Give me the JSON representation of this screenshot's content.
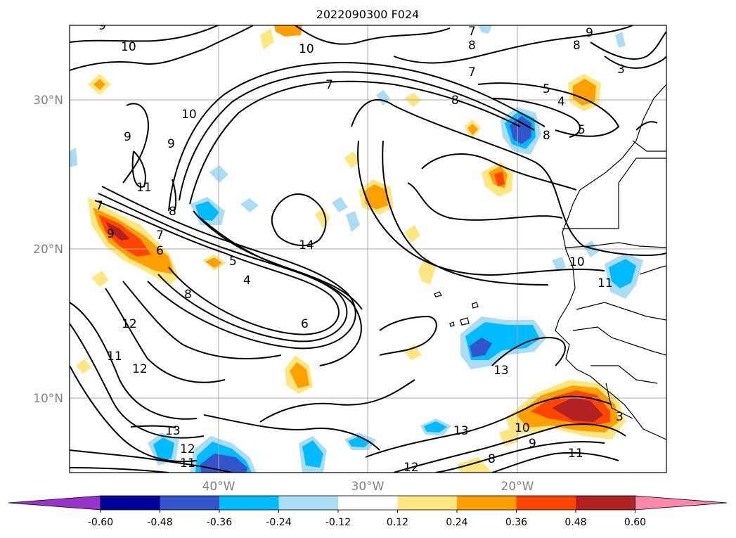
{
  "title": "2022090300 F024",
  "lat_labels": [
    "30°N",
    "20°N",
    "10°N"
  ],
  "lon_labels": [
    "40°W",
    "30°W",
    "20°W"
  ],
  "colorbar": {
    "ticks": [
      "-0.60",
      "-0.48",
      "-0.36",
      "-0.24",
      "-0.12",
      "0.12",
      "0.24",
      "0.36",
      "0.48",
      "0.60"
    ],
    "colors": [
      "#9933cc",
      "#000099",
      "#3355cc",
      "#00bbff",
      "#aaddf5",
      "#ffffff",
      "#ffe680",
      "#ffa000",
      "#ff4500",
      "#b22222",
      "#ff88aa"
    ]
  },
  "contour_labels": [
    "9",
    "10",
    "10",
    "7",
    "8",
    "9",
    "8",
    "7",
    "7",
    "5",
    "3",
    "10",
    "9",
    "9",
    "11",
    "8",
    "7",
    "8",
    "4",
    "5",
    "7",
    "8",
    "9",
    "6",
    "8",
    "14",
    "5",
    "4",
    "6",
    "12",
    "11",
    "12",
    "10",
    "11",
    "13",
    "13",
    "12",
    "11",
    "10",
    "9",
    "13",
    "12",
    "11",
    "3",
    "8"
  ],
  "anomaly_colors": {
    "blue_dark": "#3355cc",
    "blue": "#00bbff",
    "blue_light": "#aaddf5",
    "yellow": "#ffe680",
    "orange": "#ffa000",
    "red": "#ff4500",
    "darkred": "#b22222"
  }
}
